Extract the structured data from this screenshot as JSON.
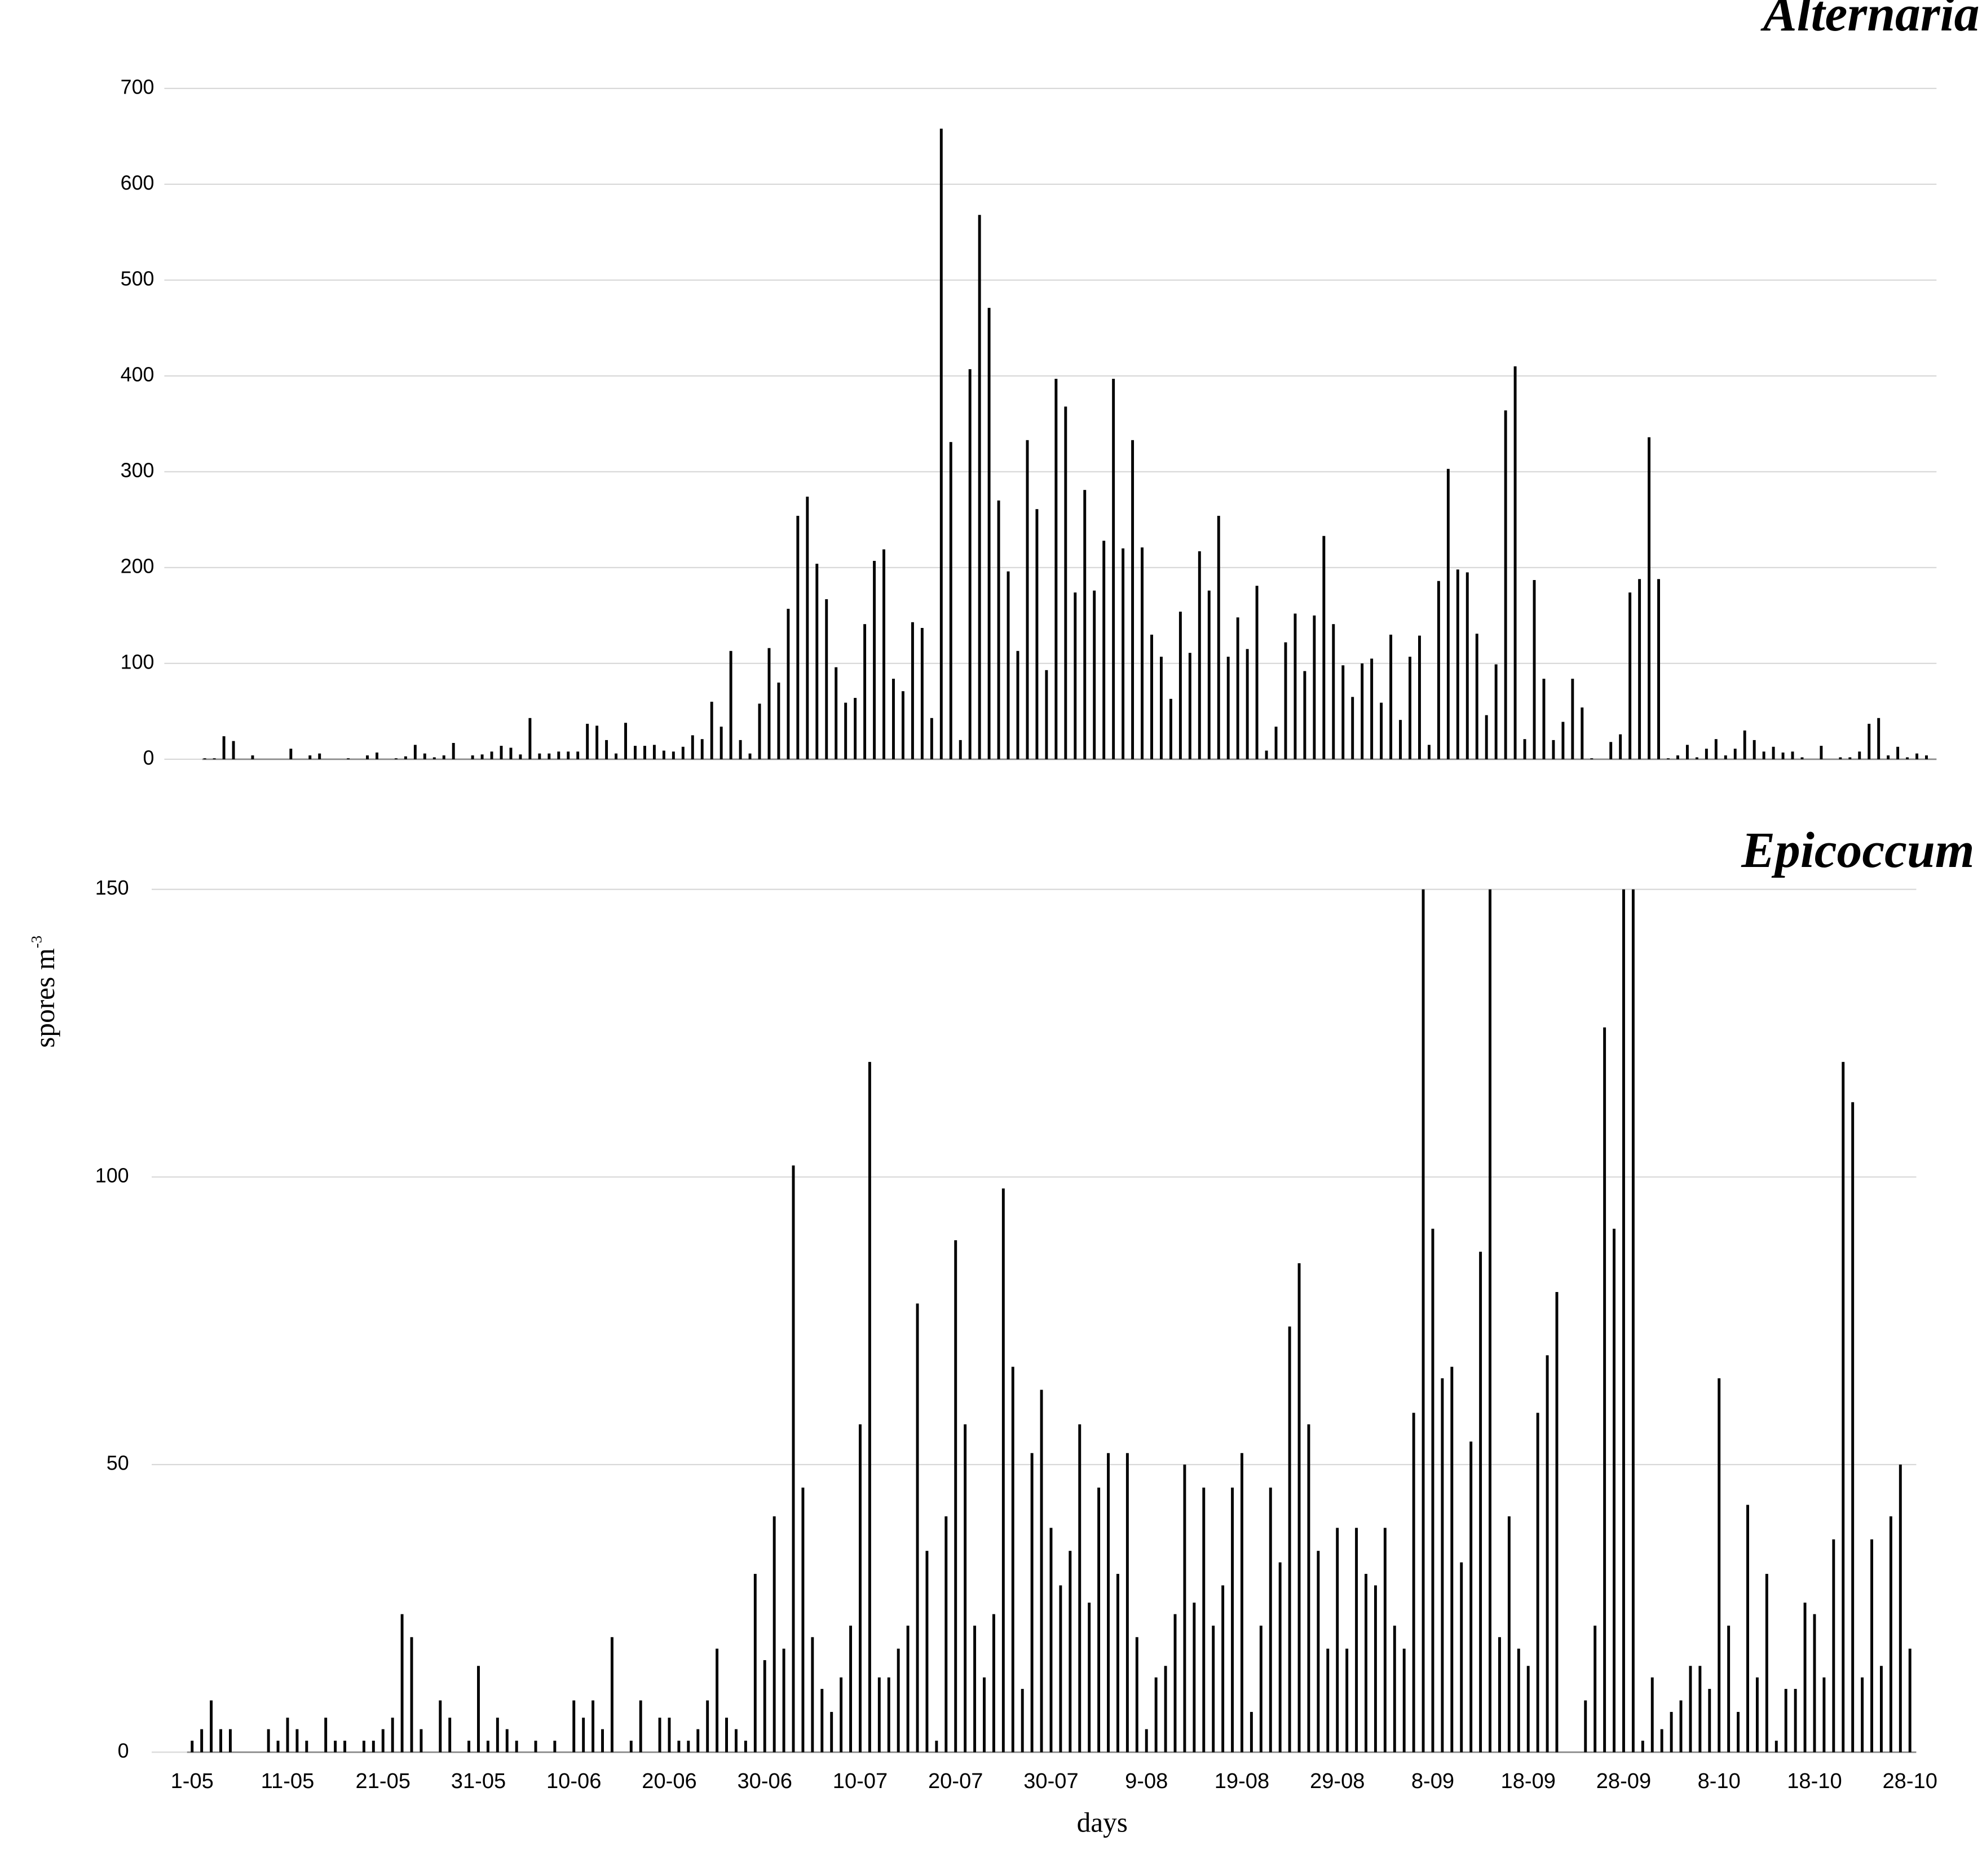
{
  "y_label": "spores m",
  "y_label_superscript": "-3",
  "chart_data": [
    {
      "type": "bar",
      "title": "Alternaria",
      "color": "#000000",
      "grid": true,
      "ylim": [
        0,
        700
      ],
      "yticks": [
        0,
        100,
        200,
        300,
        400,
        500,
        600,
        700
      ],
      "values": [
        1,
        1,
        24,
        19,
        0,
        4,
        0,
        0,
        0,
        11,
        0,
        4,
        6,
        0,
        0,
        1,
        0,
        4,
        7,
        0,
        1,
        3,
        15,
        6,
        2,
        4,
        17,
        0,
        4,
        5,
        8,
        14,
        12,
        5,
        43,
        6,
        6,
        8,
        8,
        8,
        37,
        35,
        20,
        6,
        38,
        14,
        14,
        15,
        9,
        8,
        13,
        25,
        21,
        60,
        34,
        113,
        20,
        6,
        58,
        116,
        80,
        157,
        254,
        274,
        204,
        167,
        96,
        59,
        64,
        141,
        207,
        219,
        84,
        71,
        143,
        137,
        43,
        658,
        331,
        20,
        407,
        568,
        471,
        270,
        196,
        113,
        333,
        261,
        93,
        397,
        368,
        174,
        281,
        176,
        228,
        397,
        220,
        333,
        221,
        130,
        107,
        63,
        154,
        111,
        217,
        176,
        254,
        107,
        148,
        115,
        181,
        9,
        34,
        122,
        152,
        92,
        150,
        233,
        141,
        98,
        65,
        100,
        105,
        59,
        130,
        41,
        107,
        129,
        15,
        186,
        303,
        198,
        195,
        131,
        46,
        99,
        364,
        410,
        21,
        187,
        84,
        20,
        39,
        84,
        54,
        1,
        0,
        18,
        26,
        174,
        188,
        336,
        188,
        1,
        4,
        15,
        2,
        11,
        21,
        4,
        11,
        30,
        20,
        8,
        13,
        7,
        8,
        2,
        0,
        14,
        0,
        2,
        2,
        8,
        37,
        43,
        4,
        13,
        2,
        6,
        4
      ]
    },
    {
      "type": "bar",
      "title": "Epicoccum",
      "color": "#000000",
      "grid": true,
      "x_label": "days",
      "ylim": [
        0,
        150
      ],
      "yticks": [
        0,
        50,
        100,
        150
      ],
      "categories": [
        "1-05",
        null,
        null,
        null,
        null,
        null,
        null,
        null,
        null,
        null,
        "11-05",
        null,
        null,
        null,
        null,
        null,
        null,
        null,
        null,
        null,
        "21-05",
        null,
        null,
        null,
        null,
        null,
        null,
        null,
        null,
        null,
        "31-05",
        null,
        null,
        null,
        null,
        null,
        null,
        null,
        null,
        null,
        "10-06",
        null,
        null,
        null,
        null,
        null,
        null,
        null,
        null,
        null,
        "20-06",
        null,
        null,
        null,
        null,
        null,
        null,
        null,
        null,
        null,
        "30-06",
        null,
        null,
        null,
        null,
        null,
        null,
        null,
        null,
        null,
        "10-07",
        null,
        null,
        null,
        null,
        null,
        null,
        null,
        null,
        null,
        "20-07",
        null,
        null,
        null,
        null,
        null,
        null,
        null,
        null,
        null,
        "30-07",
        null,
        null,
        null,
        null,
        null,
        null,
        null,
        null,
        null,
        "9-08",
        null,
        null,
        null,
        null,
        null,
        null,
        null,
        null,
        null,
        "19-08",
        null,
        null,
        null,
        null,
        null,
        null,
        null,
        null,
        null,
        "29-08",
        null,
        null,
        null,
        null,
        null,
        null,
        null,
        null,
        null,
        "8-09",
        null,
        null,
        null,
        null,
        null,
        null,
        null,
        null,
        null,
        "18-09",
        null,
        null,
        null,
        null,
        null,
        null,
        null,
        null,
        null,
        "28-09",
        null,
        null,
        null,
        null,
        null,
        null,
        null,
        null,
        null,
        "8-10",
        null,
        null,
        null,
        null,
        null,
        null,
        null,
        null,
        null,
        "18-10",
        null,
        null,
        null,
        null,
        null,
        null,
        null,
        null,
        null,
        "28-10"
      ],
      "values": [
        2,
        4,
        9,
        4,
        4,
        0,
        0,
        0,
        4,
        2,
        6,
        4,
        2,
        0,
        6,
        2,
        2,
        0,
        2,
        2,
        4,
        6,
        24,
        20,
        4,
        0,
        9,
        6,
        0,
        2,
        15,
        2,
        6,
        4,
        2,
        0,
        2,
        0,
        2,
        0,
        9,
        6,
        9,
        4,
        20,
        0,
        2,
        9,
        0,
        6,
        6,
        2,
        2,
        4,
        9,
        18,
        6,
        4,
        2,
        31,
        16,
        41,
        18,
        102,
        46,
        20,
        11,
        7,
        13,
        22,
        57,
        120,
        13,
        13,
        18,
        22,
        78,
        35,
        2,
        41,
        89,
        57,
        22,
        13,
        24,
        98,
        67,
        11,
        52,
        63,
        39,
        29,
        35,
        57,
        26,
        46,
        52,
        31,
        52,
        20,
        4,
        13,
        15,
        24,
        50,
        26,
        46,
        22,
        29,
        46,
        52,
        7,
        22,
        46,
        33,
        74,
        85,
        57,
        35,
        18,
        39,
        18,
        39,
        31,
        29,
        39,
        22,
        18,
        59,
        150,
        91,
        65,
        67,
        33,
        54,
        87,
        150,
        20,
        41,
        18,
        15,
        59,
        69,
        80,
        0,
        0,
        9,
        22,
        126,
        91,
        150,
        150,
        2,
        13,
        4,
        7,
        9,
        15,
        15,
        11,
        65,
        22,
        7,
        43,
        13,
        31,
        2,
        11,
        11,
        26,
        24,
        13,
        37,
        120,
        113,
        13,
        37,
        15,
        41,
        50,
        18
      ]
    }
  ]
}
